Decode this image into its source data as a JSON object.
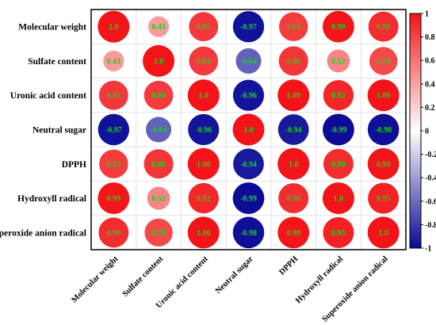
{
  "chart_data": {
    "type": "heatmap",
    "style": "circle-correlation-matrix",
    "variables": [
      "Molecular weight",
      "Sulfate content",
      "Uronic acid content",
      "Neutral sugar",
      "DPPH",
      "Hydroxyll radical",
      "Superoxide anion radical"
    ],
    "matrix": [
      [
        1.0,
        0.43,
        0.85,
        -0.97,
        0.83,
        0.99,
        0.9
      ],
      [
        0.43,
        1.0,
        0.84,
        -0.64,
        0.86,
        0.52,
        0.78
      ],
      [
        0.85,
        0.84,
        1.0,
        -0.96,
        1.0,
        0.92,
        1.0
      ],
      [
        -0.97,
        -0.64,
        -0.96,
        1.0,
        -0.94,
        -0.99,
        -0.98
      ],
      [
        0.83,
        0.86,
        1.0,
        -0.94,
        1.0,
        0.9,
        0.99
      ],
      [
        0.99,
        0.52,
        0.92,
        -0.99,
        0.9,
        1.0,
        0.95
      ],
      [
        0.9,
        0.78,
        1.0,
        -0.98,
        0.99,
        0.95,
        1.0
      ]
    ],
    "labels": [
      [
        "1.0",
        "0.43",
        "0.85",
        "-0.97",
        "0.83",
        "0.99",
        "0.90"
      ],
      [
        "0.43",
        "1.0",
        "0.84",
        "-0.64",
        "0.86",
        "0.52",
        "0.78"
      ],
      [
        "0.85",
        "0.84",
        "1.0",
        "-0.96",
        "1.00",
        "0.92",
        "1.00"
      ],
      [
        "-0.97",
        "-0.64",
        "-0.96",
        "1.0",
        "-0.94",
        "-0.99",
        "-0.98"
      ],
      [
        "0.83",
        "0.86",
        "1.00",
        "-0.94",
        "1.0",
        "0.90",
        "0.99"
      ],
      [
        "0.99",
        "0.52",
        "0.92",
        "-0.99",
        "0.90",
        "1.0",
        "0.95"
      ],
      [
        "0.90",
        "0.78",
        "1.00",
        "-0.98",
        "0.99",
        "0.95",
        "1.0"
      ]
    ],
    "colorbar": {
      "range": [
        -1,
        1
      ],
      "ticks": [
        1,
        0.8,
        0.6,
        0.4,
        0.2,
        0,
        -0.2,
        -0.4,
        -0.6,
        -0.8,
        -1
      ],
      "tick_labels": [
        "1",
        "0.8",
        "0.6",
        "0.4",
        "0.2",
        "0",
        "-0.2",
        "-0.4",
        "-0.6",
        "-0.8",
        "-1"
      ],
      "colors": {
        "negative": "#0a0a96",
        "zero": "#ffffff",
        "positive": "#f21418"
      },
      "placement": "right"
    },
    "title": "",
    "xlabel": "",
    "ylabel": ""
  }
}
